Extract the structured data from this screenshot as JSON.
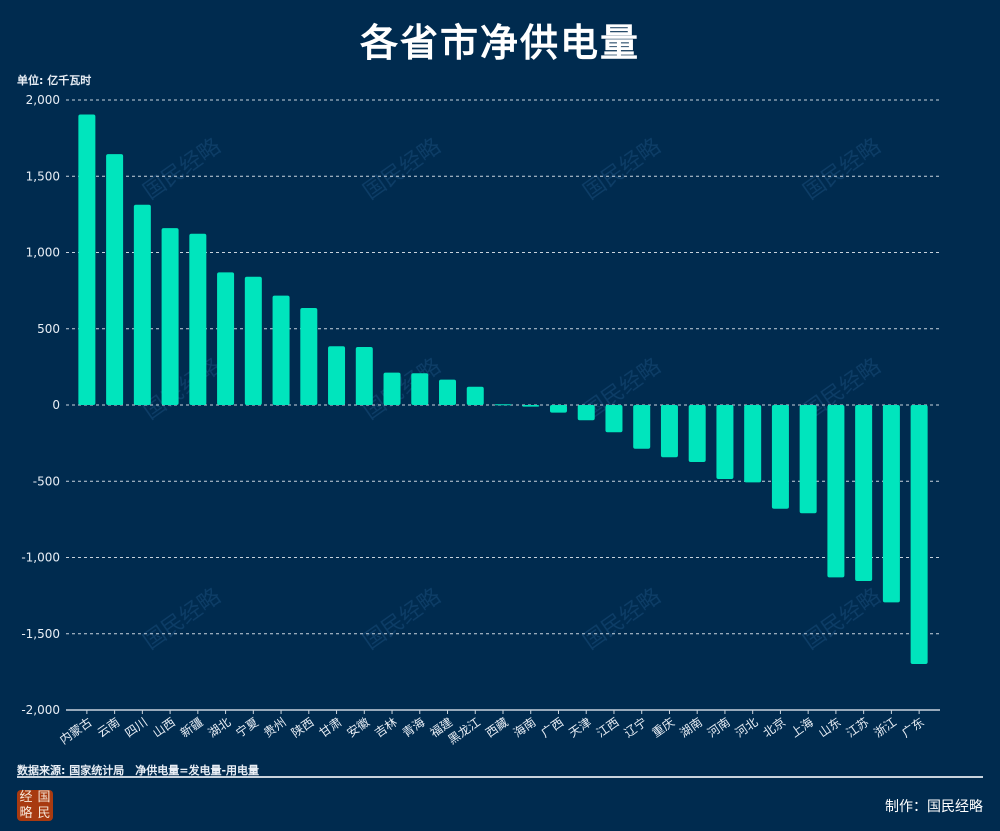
{
  "title": "各省市净供电量",
  "unit_label": "单位: 亿千瓦时",
  "footer": {
    "source": "数据来源: 国家统计局　净供电量=发电量-用电量",
    "maker": "制作：国民经略",
    "logo_text": "国民经略",
    "watermark": "国民经略"
  },
  "colors": {
    "background": "#002b4f",
    "bar": "#00e5bd",
    "grid": "#c9d3dd"
  },
  "chart_data": {
    "type": "bar",
    "title": "各省市净供电量",
    "ylabel": "单位: 亿千瓦时",
    "ylim": [
      -2000,
      2000
    ],
    "yticks": [
      -2000,
      -1500,
      -1000,
      -500,
      0,
      500,
      1000,
      1500,
      2000
    ],
    "ytick_labels": [
      "-2,000",
      "-1,500",
      "-1,000",
      "-500",
      "0",
      "500",
      "1,000",
      "1,500",
      "2,000"
    ],
    "grid": true,
    "categories": [
      "内蒙古",
      "云南",
      "四川",
      "山西",
      "新疆",
      "湖北",
      "宁夏",
      "贵州",
      "陕西",
      "甘肃",
      "安徽",
      "吉林",
      "青海",
      "福建",
      "黑龙江",
      "西藏",
      "海南",
      "广西",
      "天津",
      "江西",
      "辽宁",
      "重庆",
      "湖南",
      "河南",
      "河北",
      "北京",
      "上海",
      "山东",
      "江苏",
      "浙江",
      "广东"
    ],
    "values": [
      1905,
      1645,
      1313,
      1160,
      1123,
      870,
      841,
      717,
      636,
      385,
      380,
      212,
      208,
      166,
      120,
      5,
      -11,
      -50,
      -100,
      -179,
      -287,
      -343,
      -374,
      -485,
      -507,
      -680,
      -710,
      -1130,
      -1154,
      -1294,
      -1698
    ]
  }
}
